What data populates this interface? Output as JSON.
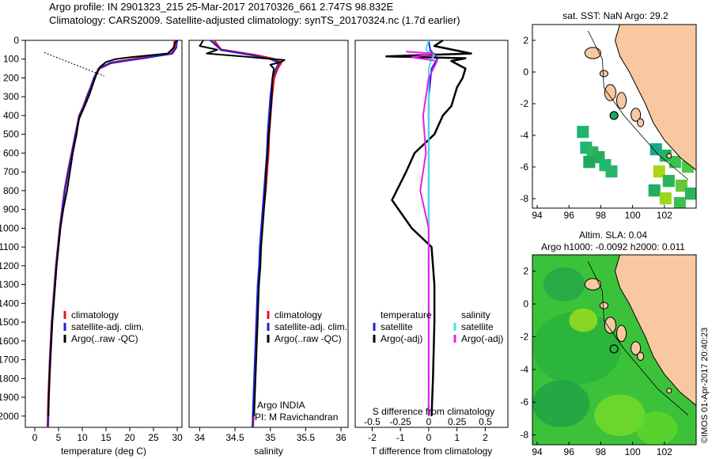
{
  "header": {
    "line1": "Argo profile: IN 2901323_215 25-Mar-2017 20170326_661 2.747S 98.832E",
    "line2": "Climatology: CARS2009. Satellite-adjusted climatology: synTS_20170324.nc (1.7d earlier)"
  },
  "colors": {
    "climatology": "#e8151b",
    "satellite": "#1e22d6",
    "argo": "#000000",
    "sat_salinity": "#3fe0e8",
    "argo_salinity_adj": "#e81ee8",
    "land": "#f8c8a0"
  },
  "chart_data": [
    {
      "type": "line",
      "id": "temperature",
      "xlabel": "temperature (deg C)",
      "xlim": [
        -2,
        31
      ],
      "ylim": [
        2060,
        0
      ],
      "xticks": [
        0,
        5,
        10,
        15,
        20,
        25,
        30
      ],
      "yticks": [
        0,
        100,
        200,
        300,
        400,
        500,
        600,
        700,
        800,
        900,
        1000,
        1100,
        1200,
        1300,
        1400,
        1500,
        1600,
        1700,
        1800,
        1900,
        2000
      ],
      "legend": {
        "placement": "lower-center",
        "entries": [
          "climatology",
          "satellite-adj. clim.",
          "Argo(..raw -QC)"
        ]
      },
      "series": [
        {
          "name": "climatology",
          "points": [
            [
              29.5,
              0
            ],
            [
              29.4,
              40
            ],
            [
              28.8,
              70
            ],
            [
              22,
              95
            ],
            [
              16,
              120
            ],
            [
              13.5,
              150
            ],
            [
              12.5,
              200
            ],
            [
              11.8,
              250
            ],
            [
              11,
              300
            ],
            [
              10.3,
              350
            ],
            [
              9.4,
              400
            ],
            [
              8.6,
              500
            ],
            [
              7.8,
              600
            ],
            [
              7,
              700
            ],
            [
              6.3,
              800
            ],
            [
              5.8,
              900
            ],
            [
              5.3,
              1000
            ],
            [
              4.9,
              1100
            ],
            [
              4.5,
              1200
            ],
            [
              4.2,
              1300
            ],
            [
              3.9,
              1400
            ],
            [
              3.6,
              1500
            ],
            [
              3.4,
              1600
            ],
            [
              3.2,
              1700
            ],
            [
              3.05,
              1800
            ],
            [
              2.9,
              1900
            ],
            [
              2.8,
              2000
            ],
            [
              2.75,
              2060
            ]
          ]
        },
        {
          "name": "satellite-adj. clim.",
          "points": [
            [
              30,
              0
            ],
            [
              29.8,
              40
            ],
            [
              29,
              70
            ],
            [
              23,
              95
            ],
            [
              16,
              120
            ],
            [
              13.5,
              150
            ],
            [
              12.5,
              200
            ],
            [
              11.8,
              250
            ],
            [
              11,
              300
            ],
            [
              10.3,
              350
            ],
            [
              9.4,
              400
            ],
            [
              8.6,
              500
            ],
            [
              7.8,
              600
            ],
            [
              7,
              700
            ],
            [
              6.3,
              800
            ],
            [
              5.8,
              900
            ],
            [
              5.3,
              1000
            ],
            [
              4.9,
              1100
            ],
            [
              4.5,
              1200
            ],
            [
              4.2,
              1300
            ],
            [
              3.9,
              1400
            ],
            [
              3.6,
              1500
            ],
            [
              3.4,
              1600
            ],
            [
              3.2,
              1700
            ],
            [
              3.05,
              1800
            ],
            [
              2.9,
              1900
            ],
            [
              2.8,
              2000
            ],
            [
              2.75,
              2060
            ]
          ]
        },
        {
          "name": "Argo(..raw -QC)",
          "points": [
            [
              30,
              0
            ],
            [
              29.6,
              10
            ],
            [
              29.2,
              40
            ],
            [
              28,
              70
            ],
            [
              20,
              90
            ],
            [
              17,
              100
            ],
            [
              15,
              115
            ],
            [
              13.8,
              140
            ],
            [
              13,
              180
            ],
            [
              12.3,
              230
            ],
            [
              11.5,
              290
            ],
            [
              10.5,
              350
            ],
            [
              9.3,
              420
            ],
            [
              8.8,
              500
            ],
            [
              8,
              600
            ],
            [
              7.4,
              700
            ],
            [
              6.8,
              800
            ],
            [
              6,
              900
            ],
            [
              5.4,
              1000
            ],
            [
              5,
              1100
            ],
            [
              4.6,
              1200
            ],
            [
              4.3,
              1300
            ],
            [
              4,
              1400
            ],
            [
              3.7,
              1500
            ],
            [
              3.5,
              1600
            ],
            [
              3.3,
              1700
            ],
            [
              3.1,
              1800
            ],
            [
              2.95,
              1900
            ],
            [
              2.85,
              2000
            ]
          ]
        }
      ]
    },
    {
      "type": "line",
      "id": "salinity",
      "xlabel": "salinity",
      "xlim": [
        33.85,
        36.1
      ],
      "ylim": [
        2060,
        0
      ],
      "xticks": [
        34,
        34.5,
        35,
        35.5,
        36
      ],
      "legend": {
        "placement": "lower-center",
        "entries": [
          "climatology",
          "satellite-adj. clim.",
          "Argo(..raw -QC)"
        ]
      },
      "annotations": [
        "Argo INDIA",
        "PI: M Ravichandran"
      ],
      "series": [
        {
          "name": "climatology",
          "points": [
            [
              34.2,
              0
            ],
            [
              34.3,
              50
            ],
            [
              34.8,
              80
            ],
            [
              35.05,
              100
            ],
            [
              35.15,
              120
            ],
            [
              35.1,
              150
            ],
            [
              35.05,
              200
            ],
            [
              35.02,
              300
            ],
            [
              35.0,
              400
            ],
            [
              34.98,
              500
            ],
            [
              34.97,
              600
            ],
            [
              34.95,
              700
            ],
            [
              34.93,
              800
            ],
            [
              34.9,
              900
            ],
            [
              34.88,
              1000
            ],
            [
              34.86,
              1100
            ],
            [
              34.85,
              1200
            ],
            [
              34.83,
              1300
            ],
            [
              34.82,
              1400
            ],
            [
              34.81,
              1500
            ],
            [
              34.8,
              1600
            ],
            [
              34.79,
              1700
            ],
            [
              34.78,
              1800
            ],
            [
              34.77,
              1900
            ],
            [
              34.76,
              2000
            ],
            [
              34.75,
              2060
            ]
          ]
        },
        {
          "name": "satellite-adj. clim.",
          "points": [
            [
              34.15,
              0
            ],
            [
              34.3,
              50
            ],
            [
              34.75,
              80
            ],
            [
              35.0,
              100
            ],
            [
              35.12,
              120
            ],
            [
              35.08,
              150
            ],
            [
              35.03,
              200
            ],
            [
              35.0,
              300
            ],
            [
              34.98,
              400
            ],
            [
              34.96,
              500
            ],
            [
              34.95,
              600
            ],
            [
              34.93,
              700
            ],
            [
              34.91,
              800
            ],
            [
              34.89,
              900
            ],
            [
              34.87,
              1000
            ],
            [
              34.85,
              1100
            ],
            [
              34.84,
              1200
            ],
            [
              34.82,
              1300
            ],
            [
              34.81,
              1400
            ],
            [
              34.8,
              1500
            ],
            [
              34.79,
              1600
            ],
            [
              34.78,
              1700
            ],
            [
              34.77,
              1800
            ],
            [
              34.76,
              1900
            ],
            [
              34.75,
              2000
            ],
            [
              34.75,
              2060
            ]
          ]
        },
        {
          "name": "Argo(..raw -QC)",
          "points": [
            [
              34.05,
              0
            ],
            [
              34.0,
              30
            ],
            [
              34.25,
              50
            ],
            [
              34.1,
              70
            ],
            [
              34.6,
              85
            ],
            [
              34.9,
              95
            ],
            [
              35.2,
              105
            ],
            [
              35.15,
              115
            ],
            [
              35.0,
              130
            ],
            [
              35.05,
              150
            ],
            [
              35.03,
              200
            ],
            [
              35.02,
              300
            ],
            [
              35.0,
              400
            ],
            [
              34.98,
              500
            ],
            [
              34.96,
              600
            ],
            [
              34.94,
              700
            ],
            [
              34.93,
              800
            ],
            [
              34.91,
              900
            ],
            [
              34.89,
              1000
            ],
            [
              34.87,
              1100
            ],
            [
              34.86,
              1200
            ],
            [
              34.84,
              1300
            ],
            [
              34.83,
              1400
            ],
            [
              34.82,
              1500
            ],
            [
              34.81,
              1600
            ],
            [
              34.8,
              1700
            ],
            [
              34.79,
              1800
            ],
            [
              34.78,
              1900
            ],
            [
              34.77,
              2000
            ]
          ]
        }
      ]
    },
    {
      "type": "line",
      "id": "difference",
      "xlabel": "T difference from climatology",
      "top_label": "S difference from climatology",
      "xlim": [
        -2.6,
        2.8
      ],
      "ylim": [
        2060,
        0
      ],
      "xticks": [
        -2,
        -1,
        0,
        1,
        2
      ],
      "top_ticks": [
        "-0.5",
        "-0.25",
        "0",
        "0.25",
        "0.5"
      ],
      "legend": {
        "placement": "lower",
        "temperature_header": "temperature",
        "salinity_header": "salinity",
        "entries": [
          "satellite",
          "Argo(-adj)",
          "satellite",
          "Argo(-adj)"
        ]
      },
      "series": [
        {
          "name": "satellite",
          "points": [
            [
              0,
              0
            ],
            [
              0.05,
              50
            ],
            [
              0.2,
              80
            ],
            [
              0.3,
              100
            ],
            [
              0.1,
              150
            ],
            [
              0,
              300
            ],
            [
              0,
              2000
            ]
          ]
        },
        {
          "name": "Argo(-adj)",
          "points": [
            [
              0.5,
              0
            ],
            [
              0.2,
              30
            ],
            [
              1.5,
              70
            ],
            [
              -1.5,
              85
            ],
            [
              1.3,
              95
            ],
            [
              0.8,
              110
            ],
            [
              1.3,
              150
            ],
            [
              1.2,
              200
            ],
            [
              1.0,
              250
            ],
            [
              0.8,
              350
            ],
            [
              0.5,
              400
            ],
            [
              0.2,
              500
            ],
            [
              -0.5,
              600
            ],
            [
              -0.8,
              700
            ],
            [
              -1.3,
              850
            ],
            [
              -0.6,
              1000
            ],
            [
              0.1,
              1100
            ],
            [
              0.2,
              1300
            ],
            [
              0.2,
              1500
            ],
            [
              0.15,
              1800
            ],
            [
              0.1,
              2000
            ]
          ]
        },
        {
          "name": "satellite",
          "points": [
            [
              0,
              0
            ],
            [
              -0.1,
              50
            ],
            [
              0.2,
              80
            ],
            [
              0.1,
              100
            ],
            [
              0,
              150
            ],
            [
              0,
              2000
            ]
          ]
        },
        {
          "name": "Argo(-adj)",
          "points": [
            [
              -0.8,
              60
            ],
            [
              0.2,
              70
            ],
            [
              -0.6,
              90
            ],
            [
              0.3,
              110
            ],
            [
              0,
              200
            ],
            [
              -0.1,
              300
            ],
            [
              -0.2,
              400
            ],
            [
              -0.1,
              600
            ],
            [
              -0.3,
              800
            ],
            [
              0,
              1000
            ],
            [
              0,
              2000
            ]
          ]
        }
      ]
    },
    {
      "type": "heatmap",
      "id": "sst_map",
      "title": "sat. SST: NaN Argo: 29.2",
      "xlim": [
        93.7,
        104
      ],
      "ylim": [
        -8.6,
        3
      ],
      "xticks": [
        94,
        96,
        98,
        100,
        102
      ],
      "yticks": [
        2,
        0,
        -2,
        -4,
        -6,
        -8
      ],
      "argo_position": [
        98.832,
        -2.747
      ]
    },
    {
      "type": "heatmap",
      "id": "sla_map",
      "title": "Altim. SLA: 0.04",
      "subtitle": "Argo h1000: -0.0092 h2000: 0.011",
      "xlim": [
        93.7,
        104
      ],
      "ylim": [
        -8.6,
        3
      ],
      "xticks": [
        94,
        96,
        98,
        100,
        102
      ],
      "yticks": [
        2,
        0,
        -2,
        -4,
        -6,
        -8
      ],
      "argo_position": [
        98.832,
        -2.747
      ]
    }
  ],
  "credit": "©IMOS 01-Apr-2017 20:40:23"
}
